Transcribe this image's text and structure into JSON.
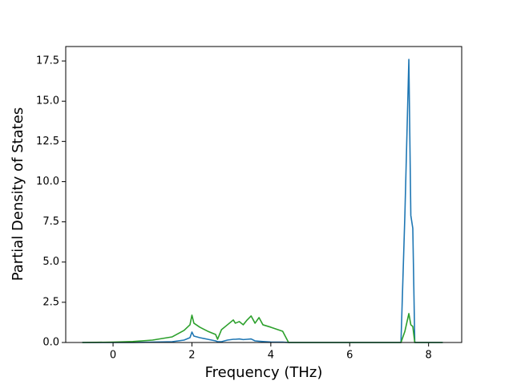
{
  "chart_data": {
    "type": "line",
    "xlabel": "Frequency (THz)",
    "ylabel": "Partial Density of States",
    "x": [
      -0.78,
      0,
      0.5,
      1.0,
      1.5,
      1.8,
      1.95,
      2.0,
      2.05,
      2.2,
      2.4,
      2.6,
      2.65,
      2.75,
      2.9,
      3.05,
      3.1,
      3.2,
      3.3,
      3.4,
      3.5,
      3.6,
      3.7,
      3.8,
      4.0,
      4.3,
      4.45,
      5.0,
      6.0,
      7.2,
      7.3,
      7.4,
      7.5,
      7.55,
      7.6,
      7.65,
      8.0,
      8.36
    ],
    "series": [
      {
        "color": "#1f77b4",
        "values": [
          0,
          0,
          0,
          0.02,
          0.05,
          0.15,
          0.3,
          0.65,
          0.4,
          0.3,
          0.2,
          0.1,
          0.05,
          0.05,
          0.15,
          0.2,
          0.2,
          0.22,
          0.18,
          0.2,
          0.22,
          0.1,
          0.08,
          0.06,
          0.03,
          0.02,
          0,
          0,
          0,
          0,
          0,
          8.0,
          17.6,
          7.9,
          7.1,
          0,
          0,
          0
        ]
      },
      {
        "color": "#2ca02c",
        "values": [
          0,
          0.02,
          0.06,
          0.15,
          0.35,
          0.75,
          1.1,
          1.7,
          1.2,
          0.95,
          0.7,
          0.5,
          0.2,
          0.8,
          1.1,
          1.4,
          1.2,
          1.3,
          1.1,
          1.4,
          1.65,
          1.2,
          1.55,
          1.1,
          0.95,
          0.7,
          0,
          0,
          0,
          0,
          0,
          0.7,
          1.8,
          1.1,
          1.0,
          0,
          0,
          0
        ]
      }
    ],
    "xlim": [
      -1.2,
      8.84
    ],
    "ylim": [
      0,
      18.4
    ],
    "xticks": [
      0,
      2,
      4,
      6,
      8
    ],
    "yticks": [
      {
        "value": 0,
        "label": "0.0"
      },
      2.5,
      {
        "value": 5,
        "label": "5.0"
      },
      7.5,
      {
        "value": 10,
        "label": "10.0"
      },
      12.5,
      {
        "value": 15,
        "label": "15.0"
      },
      17.5
    ]
  }
}
